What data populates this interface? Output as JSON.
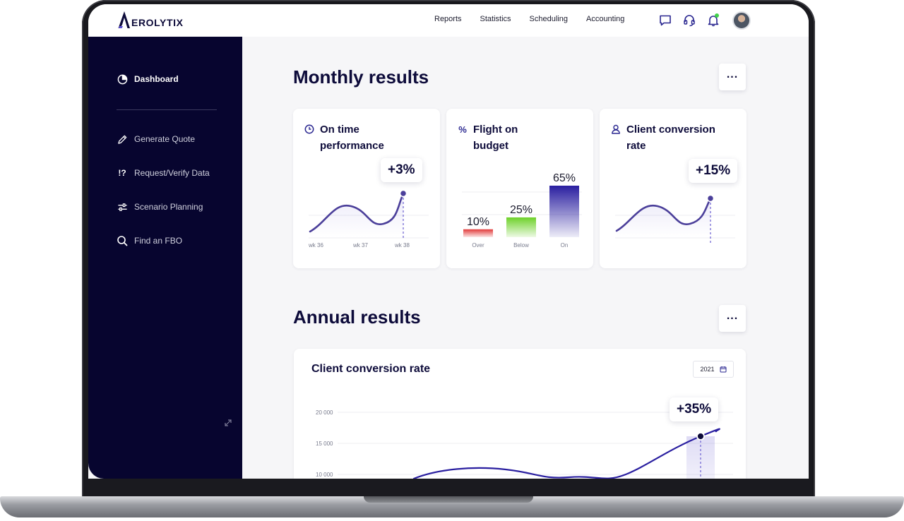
{
  "app": {
    "logo_text": "EROLYTIX"
  },
  "nav": {
    "items": [
      "Reports",
      "Statistics",
      "Scheduling",
      "Accounting"
    ]
  },
  "top_icons": [
    "chat-icon",
    "headset-icon",
    "bell-icon",
    "avatar"
  ],
  "sidebar": {
    "items": [
      {
        "label": "Dashboard",
        "icon": "pie-chart-icon",
        "active": true
      },
      {
        "label": "Generate Quote",
        "icon": "pencil-icon",
        "active": false
      },
      {
        "label": "Request/Verify Data",
        "icon": "exclaim-question-icon",
        "active": false
      },
      {
        "label": "Scenario Planning",
        "icon": "sliders-icon",
        "active": false
      },
      {
        "label": "Find an FBO",
        "icon": "search-icon",
        "active": false
      }
    ],
    "request_icon_glyph": "!?"
  },
  "monthly": {
    "title": "Monthly results",
    "more_label": "...",
    "cards": [
      {
        "title_lines": [
          "On time",
          "performance"
        ],
        "icon": "clock-icon",
        "badge": "+3%"
      },
      {
        "title_lines": [
          "Flight on",
          "budget"
        ],
        "icon": "percent-icon",
        "icon_glyph": "%"
      },
      {
        "title_lines": [
          "Client conversion",
          "rate"
        ],
        "icon": "user-icon",
        "badge": "+15%"
      }
    ]
  },
  "annual": {
    "title": "Annual results",
    "more_label": "...",
    "card_title": "Client conversion rate",
    "year": "2021",
    "badge": "+35%"
  },
  "colors": {
    "navy": "#07052f",
    "accent": "#4b3f9a",
    "red": "#e23a3a",
    "green": "#6ed12a",
    "purple": "#2a1fa0"
  },
  "chart_data": [
    {
      "type": "line",
      "title": "On time performance",
      "categories": [
        "wk 36",
        "wk 37",
        "wk 38"
      ],
      "highlight": "wk 38",
      "annotation": "+3%"
    },
    {
      "type": "bar",
      "title": "Flight on budget",
      "categories": [
        "Over",
        "Below",
        "On"
      ],
      "values": [
        10,
        25,
        65
      ],
      "labels": [
        "10%",
        "25%",
        "65%"
      ],
      "colors": [
        "#e23a3a",
        "#6ed12a",
        "#2a1fa0"
      ]
    },
    {
      "type": "line",
      "title": "Client conversion rate",
      "annotation": "+15%"
    },
    {
      "type": "line",
      "title": "Client conversion rate",
      "y_ticks": [
        "20 000",
        "15 000",
        "10 000"
      ],
      "annotation": "+35%"
    }
  ]
}
